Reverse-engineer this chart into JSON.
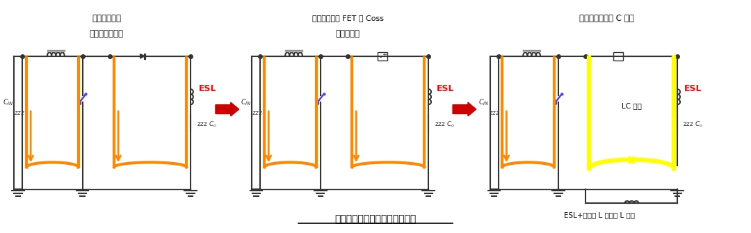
{
  "bg_color": "#ffffff",
  "title_bottom": "低边开关导通时发生振铃的原因",
  "panel1_title1": "反向恢复电流",
  "panel1_title2": "导致的反向流动",
  "panel2_title1": "向结点电容或 FET 的 Coss",
  "panel2_title2": "充电的电流",
  "panel3_title1": "结点电容带来的 C 分量",
  "panel3_bottom": "ESL+布线的 L 带来的 L 分量",
  "esl_color": "#ff0000",
  "arrow_color": "#ff4400",
  "current_loop_color": "#ff8800",
  "wire_color": "#333333",
  "yellow_loop_color": "#ffff00",
  "blue_switch_color": "#4444ff",
  "red_arrow_color": "#cc0000",
  "lc_text": "LC 谐振",
  "esl_text": "ESL"
}
